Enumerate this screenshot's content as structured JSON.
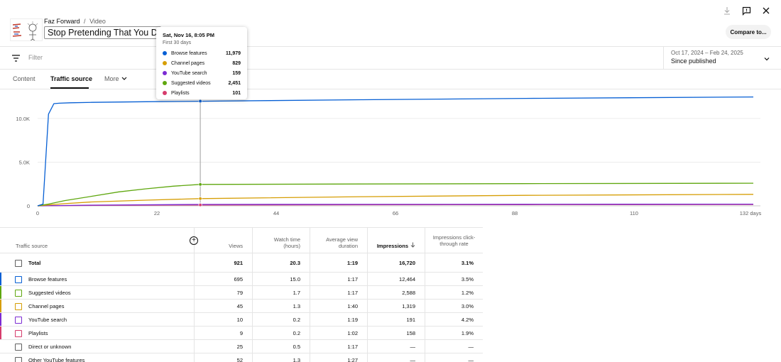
{
  "header": {
    "channel": "Faz Forward",
    "separator": "/",
    "section": "Video",
    "title": "Stop Pretending That You Don",
    "compare_label": "Compare to..."
  },
  "filter": {
    "placeholder": "Filter"
  },
  "date": {
    "range": "Oct 17, 2024 – Feb 24, 2025",
    "label": "Since published"
  },
  "tabs": [
    {
      "label": "Content"
    },
    {
      "label": "Traffic source"
    },
    {
      "label": "More"
    }
  ],
  "tooltip": {
    "date": "Sat, Nov 16, 8:05 PM",
    "subtitle": "First 30 days",
    "rows": [
      {
        "name": "Browse features",
        "value": "11,979",
        "color": "#065fd4"
      },
      {
        "name": "Channel pages",
        "value": "829",
        "color": "#d69e05"
      },
      {
        "name": "YouTube search",
        "value": "159",
        "color": "#7b2bd3"
      },
      {
        "name": "Suggested videos",
        "value": "2,451",
        "color": "#5fa70f"
      },
      {
        "name": "Playlists",
        "value": "101",
        "color": "#d63c6c"
      }
    ]
  },
  "chart_data": {
    "type": "line",
    "xlabel": "",
    "ylabel": "",
    "x_ticks": [
      "0",
      "22",
      "44",
      "66",
      "88",
      "110",
      "132 days"
    ],
    "y_ticks": [
      "0",
      "5.0K",
      "10.0K"
    ],
    "xlim": [
      0,
      132
    ],
    "ylim": [
      0,
      13000
    ],
    "hover_x": 30,
    "series": [
      {
        "name": "Browse features",
        "color": "#065fd4",
        "x": [
          0,
          1,
          2,
          3,
          4,
          6,
          10,
          20,
          30,
          60,
          90,
          132
        ],
        "y": [
          0,
          200,
          10500,
          11700,
          11750,
          11800,
          11850,
          11920,
          11979,
          12150,
          12300,
          12464
        ]
      },
      {
        "name": "Suggested videos",
        "color": "#5fa70f",
        "x": [
          0,
          2,
          5,
          10,
          15,
          20,
          25,
          30,
          60,
          90,
          132
        ],
        "y": [
          0,
          200,
          600,
          1100,
          1600,
          1950,
          2250,
          2451,
          2500,
          2540,
          2588
        ]
      },
      {
        "name": "Channel pages",
        "color": "#d69e05",
        "x": [
          0,
          5,
          10,
          20,
          30,
          60,
          90,
          132
        ],
        "y": [
          0,
          250,
          450,
          650,
          829,
          1050,
          1200,
          1319
        ]
      },
      {
        "name": "YouTube search",
        "color": "#7b2bd3",
        "x": [
          0,
          10,
          30,
          60,
          90,
          132
        ],
        "y": [
          0,
          80,
          159,
          170,
          180,
          191
        ]
      },
      {
        "name": "Playlists",
        "color": "#d63c6c",
        "x": [
          0,
          10,
          30,
          60,
          90,
          132
        ],
        "y": [
          0,
          50,
          101,
          120,
          140,
          158
        ]
      }
    ]
  },
  "table": {
    "headers": {
      "source": "Traffic source",
      "views": "Views",
      "watch_time": "Watch time (hours)",
      "avg_duration": "Average view duration",
      "impressions": "Impressions",
      "ctr": "Impressions click-through rate"
    },
    "rows": [
      {
        "source": "Total",
        "views": "921",
        "watch": "20.3",
        "avd": "1:19",
        "impr": "16,720",
        "ctr": "3.1%",
        "color": "",
        "total": true
      },
      {
        "source": "Browse features",
        "views": "695",
        "watch": "15.0",
        "avd": "1:17",
        "impr": "12,464",
        "ctr": "3.5%",
        "color": "#065fd4"
      },
      {
        "source": "Suggested videos",
        "views": "79",
        "watch": "1.7",
        "avd": "1:17",
        "impr": "2,588",
        "ctr": "1.2%",
        "color": "#5fa70f"
      },
      {
        "source": "Channel pages",
        "views": "45",
        "watch": "1.3",
        "avd": "1:40",
        "impr": "1,319",
        "ctr": "3.0%",
        "color": "#d69e05"
      },
      {
        "source": "YouTube search",
        "views": "10",
        "watch": "0.2",
        "avd": "1:19",
        "impr": "191",
        "ctr": "4.2%",
        "color": "#7b2bd3"
      },
      {
        "source": "Playlists",
        "views": "9",
        "watch": "0.2",
        "avd": "1:02",
        "impr": "158",
        "ctr": "1.9%",
        "color": "#d63c6c"
      },
      {
        "source": "Direct or unknown",
        "views": "25",
        "watch": "0.5",
        "avd": "1:17",
        "impr": "—",
        "ctr": "—",
        "color": ""
      },
      {
        "source": "Other YouTube features",
        "views": "52",
        "watch": "1.3",
        "avd": "1:27",
        "impr": "—",
        "ctr": "—",
        "color": ""
      }
    ]
  }
}
